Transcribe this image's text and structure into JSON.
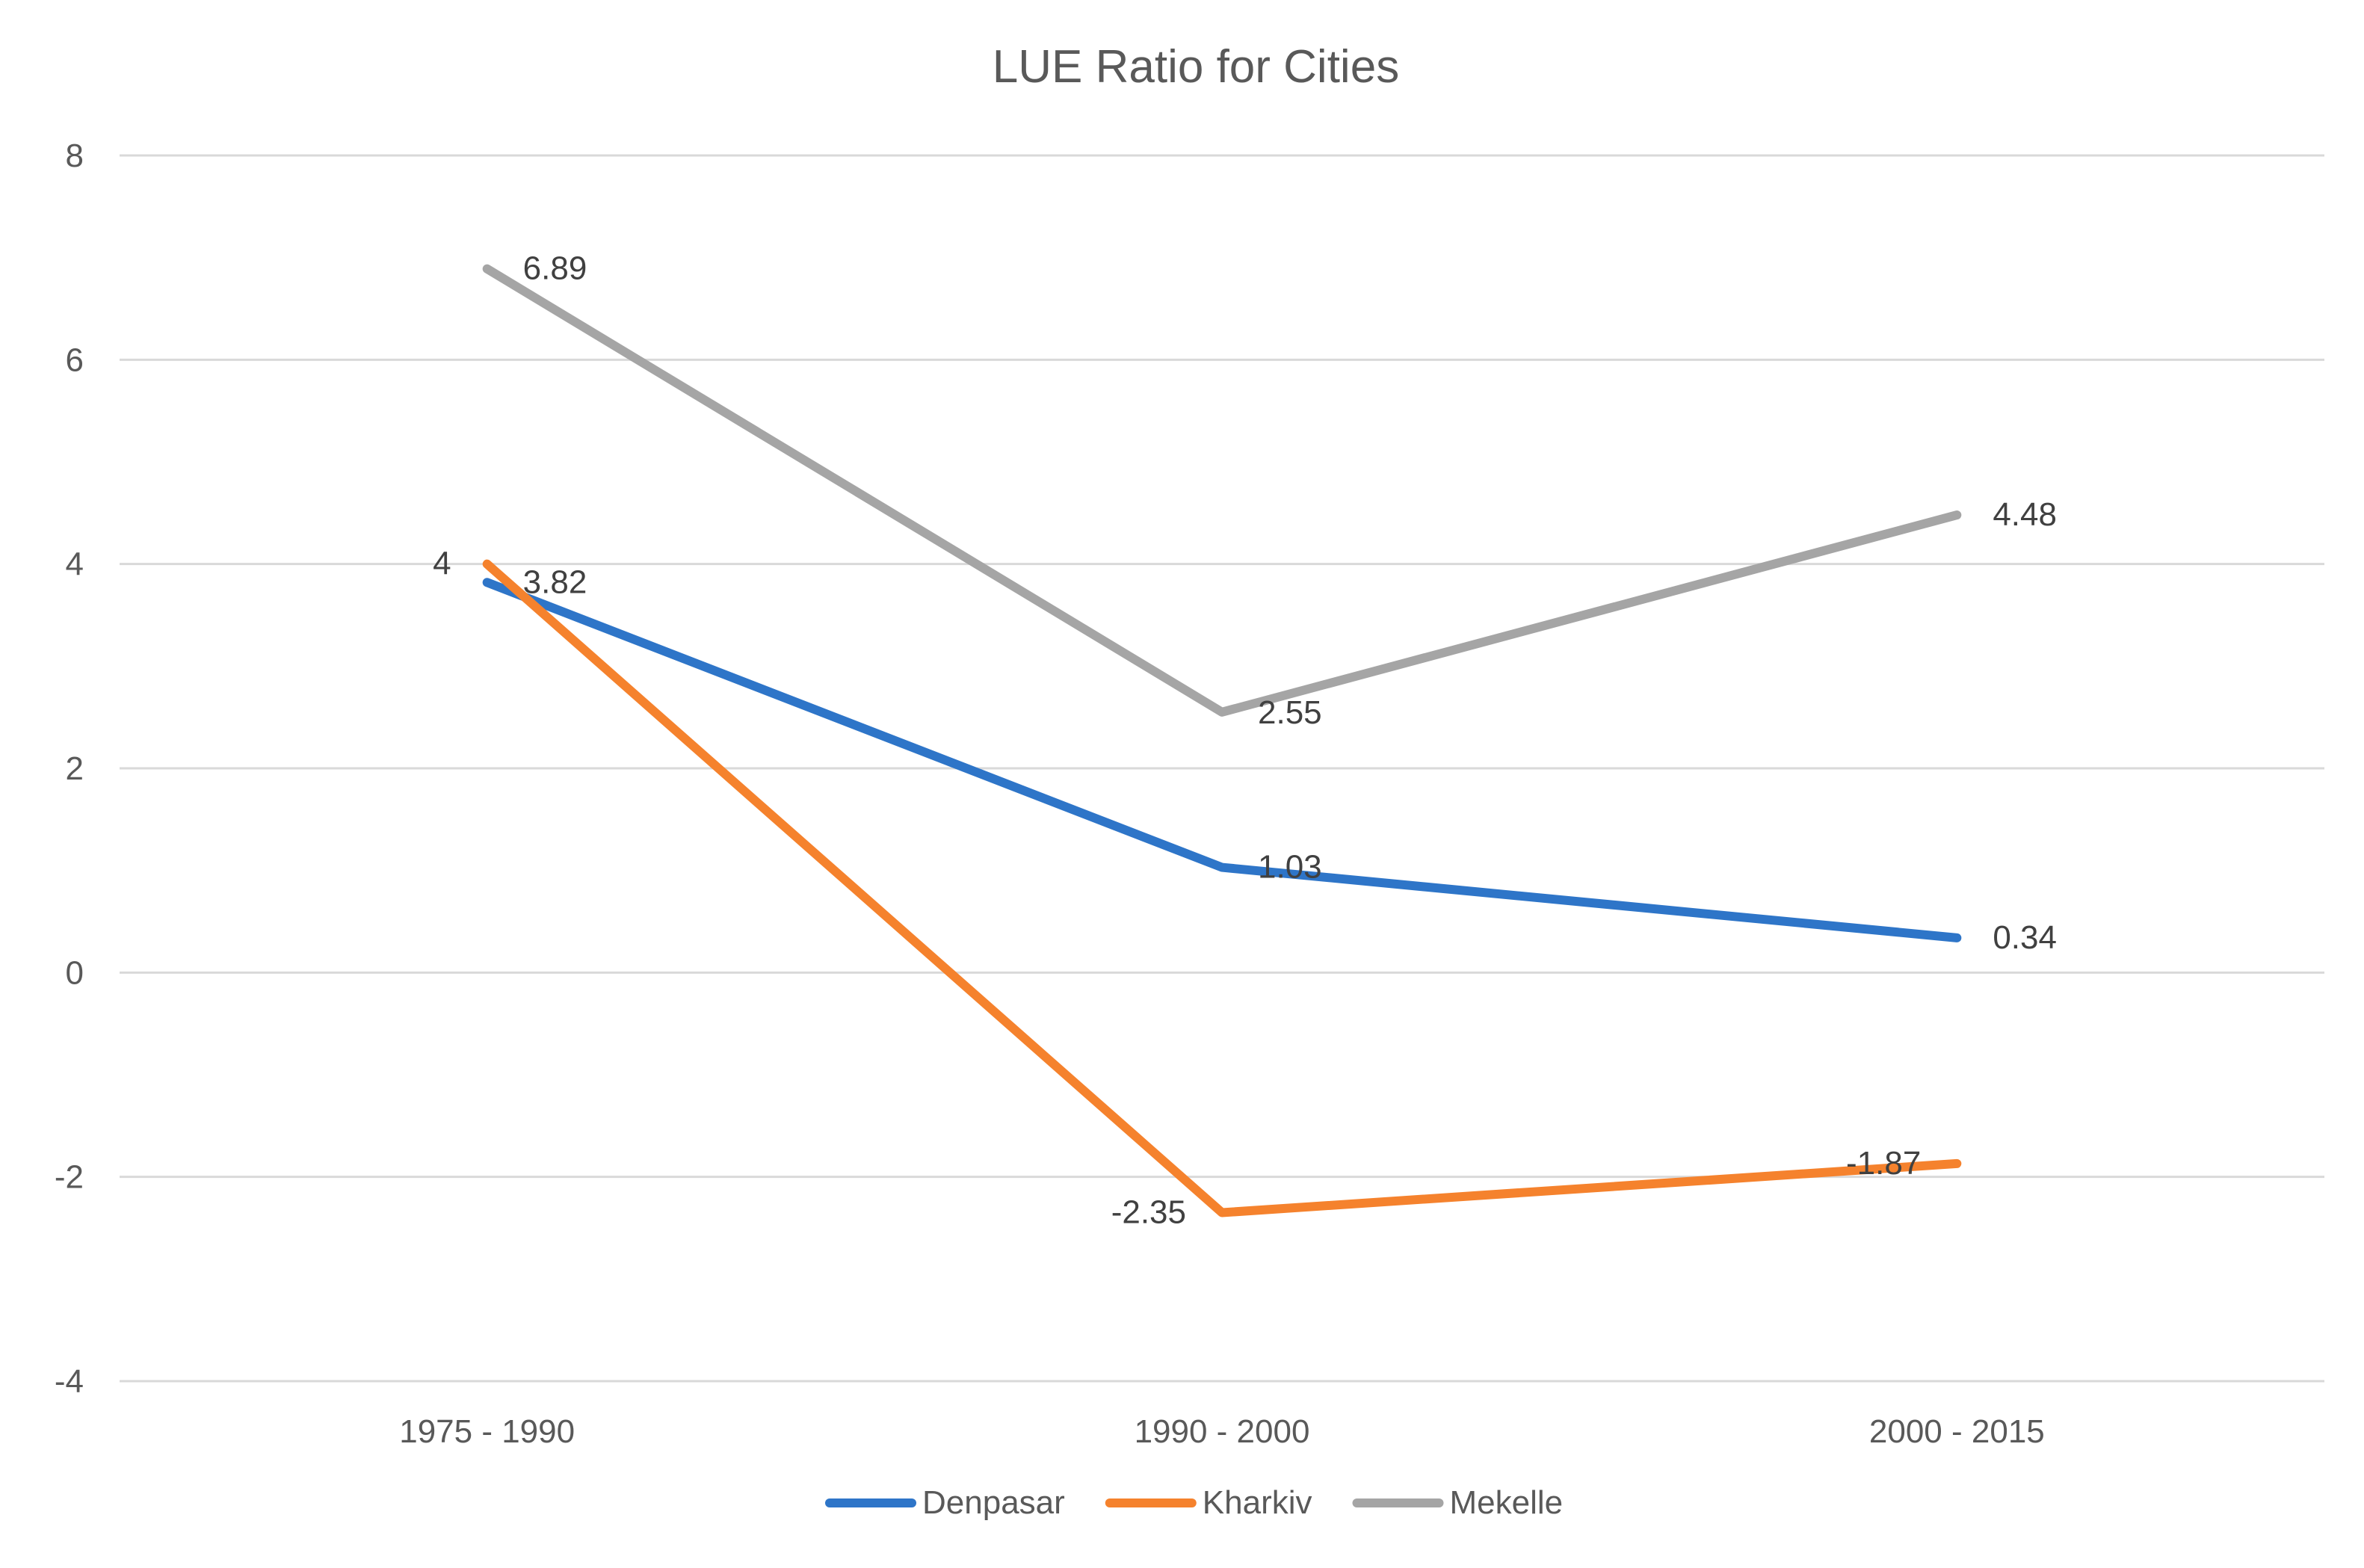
{
  "chart_data": {
    "type": "line",
    "title": "LUE Ratio for Cities",
    "xlabel": "",
    "ylabel": "",
    "categories": [
      "1975 - 1990",
      "1990 - 2000",
      "2000 - 2015"
    ],
    "ylim": [
      -4,
      8
    ],
    "yticks": [
      8,
      6,
      4,
      2,
      0,
      -2,
      -4
    ],
    "ytick_labels": [
      "8",
      "6",
      "4",
      "2",
      "0",
      "-2",
      "-4"
    ],
    "grid": true,
    "legend_position": "bottom",
    "series": [
      {
        "name": "Denpasar",
        "color": "#2e75c8",
        "values": [
          3.82,
          1.03,
          0.34
        ],
        "labels": [
          "3.82",
          "1.03",
          "0.34"
        ],
        "label_side": [
          "right",
          "right",
          "right"
        ]
      },
      {
        "name": "Kharkiv",
        "color": "#f5822d",
        "values": [
          4,
          -2.35,
          -1.87
        ],
        "labels": [
          "4",
          "-2.35",
          "-1.87"
        ],
        "label_side": [
          "left",
          "left",
          "left"
        ]
      },
      {
        "name": "Mekelle",
        "color": "#a5a5a5",
        "values": [
          6.89,
          2.55,
          4.48
        ],
        "labels": [
          "6.89",
          "2.55",
          "4.48"
        ],
        "label_side": [
          "right",
          "right-below",
          "right"
        ]
      }
    ]
  }
}
